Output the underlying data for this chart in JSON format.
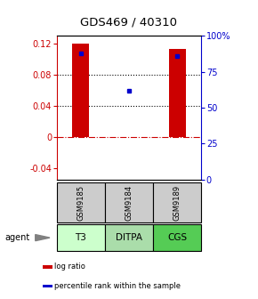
{
  "title": "GDS469 / 40310",
  "samples": [
    "GSM9185",
    "GSM9184",
    "GSM9189"
  ],
  "agents": [
    "T3",
    "DITPA",
    "CGS"
  ],
  "log_ratios": [
    0.12,
    0.0,
    0.113
  ],
  "percentile_ranks": [
    0.88,
    0.62,
    0.86
  ],
  "bar_color": "#cc0000",
  "dot_color": "#0000cc",
  "ylim_left": [
    -0.055,
    0.13
  ],
  "ylim_right": [
    0.0,
    1.0
  ],
  "yticks_left": [
    -0.04,
    0.0,
    0.04,
    0.08,
    0.12
  ],
  "yticks_right": [
    0.0,
    0.25,
    0.5,
    0.75,
    1.0
  ],
  "ytick_labels_left": [
    "-0.04",
    "0",
    "0.04",
    "0.08",
    "0.12"
  ],
  "ytick_labels_right": [
    "0",
    "25",
    "50",
    "75",
    "100%"
  ],
  "dotted_lines": [
    0.04,
    0.08
  ],
  "agent_colors": [
    "#ccffcc",
    "#aaddaa",
    "#55cc55"
  ],
  "sample_box_color": "#cccccc",
  "legend_items": [
    "log ratio",
    "percentile rank within the sample"
  ],
  "legend_colors": [
    "#cc0000",
    "#0000cc"
  ],
  "bar_width": 0.35
}
